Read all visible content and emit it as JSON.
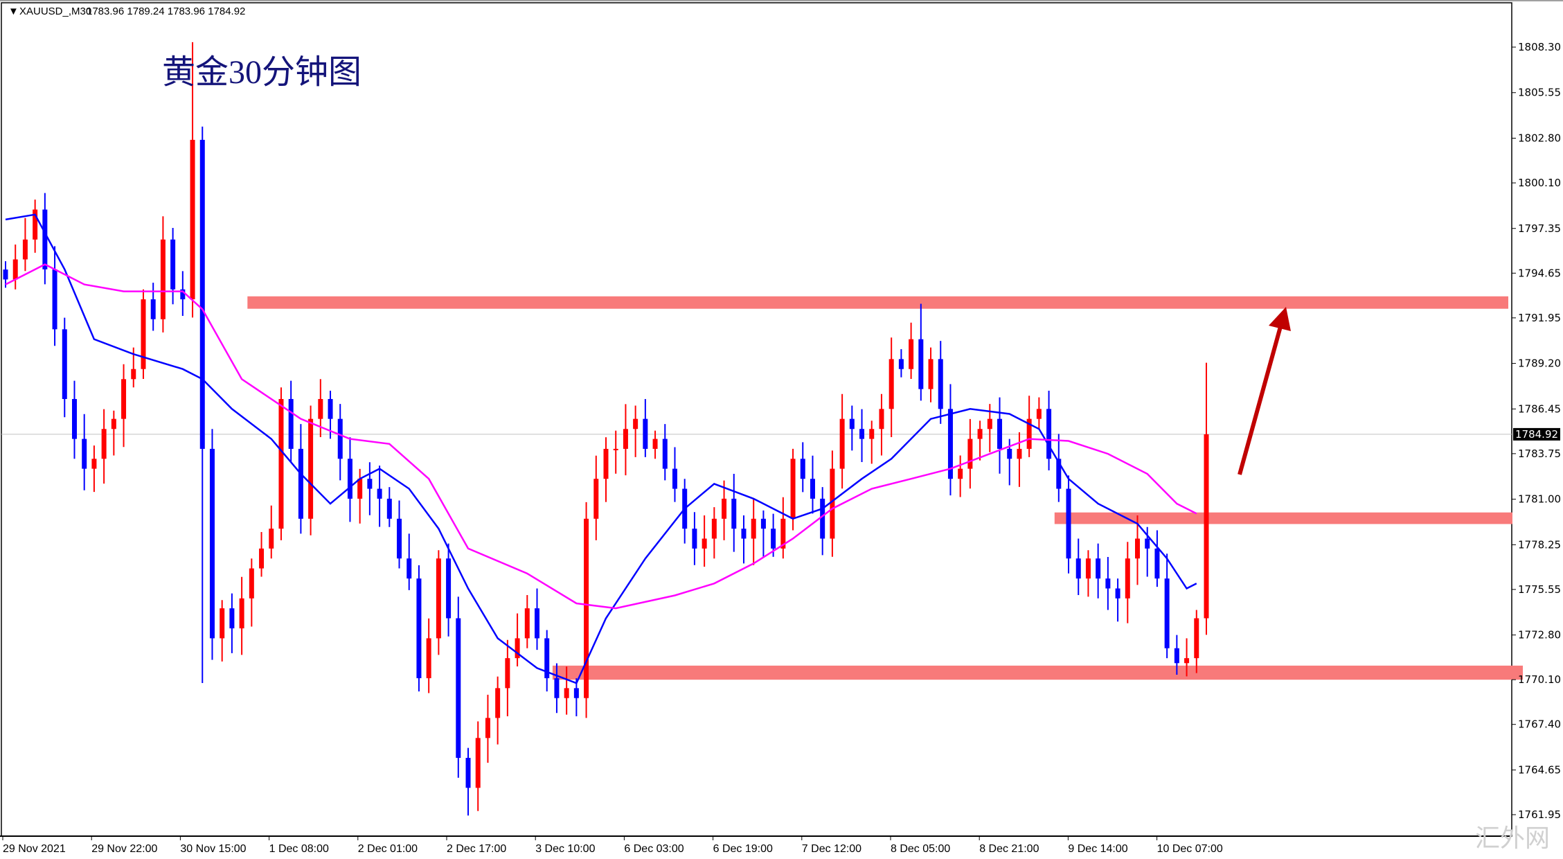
{
  "header": {
    "symbol": "XAUUSD_,M30",
    "ohlc": "1783.96 1789.24 1783.96 1784.92",
    "annotation_title": "黄金30分钟图",
    "watermark": "汇外网"
  },
  "colors": {
    "bull": "#ff0000",
    "bear": "#0000ff",
    "ma_fast": "#0000ff",
    "ma_slow": "#ff00ff",
    "zone": "#f87a7a",
    "arrow": "#c00000"
  },
  "chart_data": {
    "type": "candlestick",
    "title": "黄金30分钟图",
    "ylim": [
      1760.5,
      1809.5
    ],
    "y_ticks": [
      "1808.30",
      "1805.55",
      "1802.80",
      "1800.10",
      "1797.35",
      "1794.65",
      "1791.95",
      "1789.20",
      "1786.45",
      "1783.75",
      "1781.00",
      "1778.25",
      "1775.55",
      "1772.80",
      "1770.10",
      "1767.40",
      "1764.65",
      "1761.95"
    ],
    "x_ticks": [
      "29 Nov 2021",
      "29 Nov 22:00",
      "30 Nov 15:00",
      "1 Dec 08:00",
      "2 Dec 01:00",
      "2 Dec 17:00",
      "3 Dec 10:00",
      "6 Dec 03:00",
      "6 Dec 19:00",
      "7 Dec 12:00",
      "8 Dec 05:00",
      "8 Dec 21:00",
      "9 Dec 14:00",
      "10 Dec 07:00"
    ],
    "current_price": "1784.92",
    "last_high": 1789.24,
    "closes": [
      1794.27,
      1795.48,
      1796.68,
      1798.49,
      1794.88,
      1791.26,
      1787.05,
      1784.64,
      1782.84,
      1783.44,
      1785.24,
      1785.85,
      1788.25,
      1788.86,
      1793.07,
      1791.87,
      1796.68,
      1793.67,
      1793.07,
      1802.7,
      1784.04,
      1772.6,
      1774.41,
      1773.2,
      1775.01,
      1776.82,
      1778.02,
      1779.22,
      1787.05,
      1784.04,
      1779.82,
      1785.85,
      1787.05,
      1785.85,
      1783.44,
      1781.03,
      1782.23,
      1781.63,
      1781.03,
      1779.82,
      1777.42,
      1776.21,
      1770.19,
      1772.6,
      1777.42,
      1773.81,
      1765.38,
      1763.57,
      1766.58,
      1767.79,
      1769.59,
      1771.4,
      1772.6,
      1774.41,
      1772.6,
      1770.19,
      1768.99,
      1769.59,
      1768.99,
      1779.82,
      1782.23,
      1784.04,
      1784.04,
      1785.24,
      1785.85,
      1784.04,
      1784.64,
      1782.84,
      1781.63,
      1779.22,
      1778.02,
      1778.62,
      1779.82,
      1781.03,
      1779.22,
      1778.62,
      1779.82,
      1779.22,
      1778.02,
      1779.82,
      1783.44,
      1782.23,
      1781.03,
      1778.62,
      1782.84,
      1785.85,
      1785.24,
      1784.64,
      1785.24,
      1786.45,
      1789.46,
      1788.86,
      1790.66,
      1787.65,
      1789.46,
      1786.45,
      1782.23,
      1782.84,
      1784.64,
      1785.24,
      1785.85,
      1784.04,
      1783.44,
      1784.04,
      1785.85,
      1786.45,
      1783.44,
      1781.63,
      1777.42,
      1776.21,
      1777.42,
      1776.21,
      1775.61,
      1775.01,
      1777.42,
      1778.62,
      1778.02,
      1776.21,
      1772.0,
      1771.1,
      1771.4,
      1773.81,
      1784.92
    ],
    "spikes": [
      {
        "index": 19,
        "high": 1808.6
      },
      {
        "index": 20,
        "low": 1769.9
      },
      {
        "index": 47,
        "low": 1761.9
      },
      {
        "index": 93,
        "high": 1792.8
      }
    ],
    "series": [
      {
        "kind": "ma",
        "color": "#0000ff",
        "points": [
          [
            0,
            1797.89
          ],
          [
            3,
            1798.19
          ],
          [
            6,
            1794.88
          ],
          [
            9,
            1790.66
          ],
          [
            13,
            1789.76
          ],
          [
            18,
            1788.86
          ],
          [
            20,
            1788.25
          ],
          [
            23,
            1786.45
          ],
          [
            27,
            1784.64
          ],
          [
            30,
            1782.53
          ],
          [
            33,
            1780.73
          ],
          [
            36,
            1782.23
          ],
          [
            38,
            1782.84
          ],
          [
            41,
            1781.63
          ],
          [
            44,
            1779.22
          ],
          [
            47,
            1775.61
          ],
          [
            50,
            1772.6
          ],
          [
            54,
            1770.8
          ],
          [
            58,
            1769.89
          ],
          [
            61,
            1773.81
          ],
          [
            65,
            1777.42
          ],
          [
            69,
            1780.43
          ],
          [
            72,
            1781.93
          ],
          [
            76,
            1781.03
          ],
          [
            80,
            1779.82
          ],
          [
            83,
            1780.43
          ],
          [
            87,
            1782.23
          ],
          [
            90,
            1783.44
          ],
          [
            94,
            1785.85
          ],
          [
            98,
            1786.45
          ],
          [
            102,
            1786.15
          ],
          [
            105,
            1785.24
          ],
          [
            108,
            1782.23
          ],
          [
            111,
            1780.73
          ],
          [
            115,
            1779.52
          ],
          [
            118,
            1777.42
          ],
          [
            120,
            1775.61
          ],
          [
            121,
            1775.91
          ]
        ]
      },
      {
        "kind": "ma",
        "color": "#ff00ff",
        "points": [
          [
            0,
            1793.97
          ],
          [
            4,
            1795.18
          ],
          [
            8,
            1793.97
          ],
          [
            12,
            1793.55
          ],
          [
            18,
            1793.55
          ],
          [
            20,
            1792.47
          ],
          [
            24,
            1788.25
          ],
          [
            30,
            1785.85
          ],
          [
            35,
            1784.64
          ],
          [
            39,
            1784.34
          ],
          [
            43,
            1782.23
          ],
          [
            47,
            1778.02
          ],
          [
            53,
            1776.51
          ],
          [
            58,
            1774.71
          ],
          [
            62,
            1774.41
          ],
          [
            68,
            1775.19
          ],
          [
            72,
            1775.91
          ],
          [
            76,
            1777.12
          ],
          [
            80,
            1778.62
          ],
          [
            84,
            1780.43
          ],
          [
            88,
            1781.63
          ],
          [
            92,
            1782.23
          ],
          [
            96,
            1782.84
          ],
          [
            100,
            1783.74
          ],
          [
            104,
            1784.64
          ],
          [
            108,
            1784.52
          ],
          [
            112,
            1783.74
          ],
          [
            116,
            1782.53
          ],
          [
            119,
            1780.73
          ],
          [
            121,
            1780.13
          ]
        ]
      }
    ],
    "zones": [
      {
        "from_index": 25,
        "top": 1793.25,
        "bottom": 1792.5
      },
      {
        "from_index": 107,
        "top": 1780.2,
        "bottom": 1779.5
      },
      {
        "from_index": 56,
        "top": 1770.95,
        "bottom": 1770.1
      }
    ],
    "grid": false
  }
}
